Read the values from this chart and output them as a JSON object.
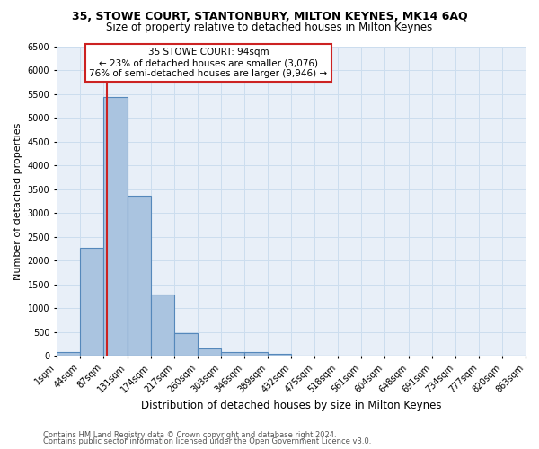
{
  "title1": "35, STOWE COURT, STANTONBURY, MILTON KEYNES, MK14 6AQ",
  "title2": "Size of property relative to detached houses in Milton Keynes",
  "xlabel": "Distribution of detached houses by size in Milton Keynes",
  "ylabel": "Number of detached properties",
  "footer1": "Contains HM Land Registry data © Crown copyright and database right 2024.",
  "footer2": "Contains public sector information licensed under the Open Government Licence v3.0.",
  "annotation_title": "35 STOWE COURT: 94sqm",
  "annotation_line1": "← 23% of detached houses are smaller (3,076)",
  "annotation_line2": "76% of semi-detached houses are larger (9,946) →",
  "property_sqm": 94,
  "bar_edges": [
    1,
    44,
    87,
    131,
    174,
    217,
    260,
    303,
    346,
    389,
    432,
    475,
    518,
    561,
    604,
    648,
    691,
    734,
    777,
    820,
    863
  ],
  "bar_values": [
    75,
    2270,
    5430,
    3370,
    1290,
    470,
    160,
    90,
    90,
    40,
    0,
    0,
    0,
    0,
    0,
    0,
    0,
    0,
    0,
    0
  ],
  "bar_color": "#aac4e0",
  "bar_edge_color": "#5588bb",
  "highlight_color": "#cc2222",
  "grid_color": "#ccddee",
  "bg_color": "#e8eff8",
  "annotation_box_color": "#cc2222",
  "ylim": [
    0,
    6500
  ],
  "yticks": [
    0,
    500,
    1000,
    1500,
    2000,
    2500,
    3000,
    3500,
    4000,
    4500,
    5000,
    5500,
    6000,
    6500
  ],
  "xlim_labels": [
    "1sqm",
    "44sqm",
    "87sqm",
    "131sqm",
    "174sqm",
    "217sqm",
    "260sqm",
    "303sqm",
    "346sqm",
    "389sqm",
    "432sqm",
    "475sqm",
    "518sqm",
    "561sqm",
    "604sqm",
    "648sqm",
    "691sqm",
    "734sqm",
    "777sqm",
    "820sqm",
    "863sqm"
  ],
  "title1_fontsize": 9,
  "title2_fontsize": 8.5,
  "ylabel_fontsize": 8,
  "xlabel_fontsize": 8.5,
  "tick_fontsize": 7,
  "annotation_fontsize": 7.5,
  "footer_fontsize": 6
}
